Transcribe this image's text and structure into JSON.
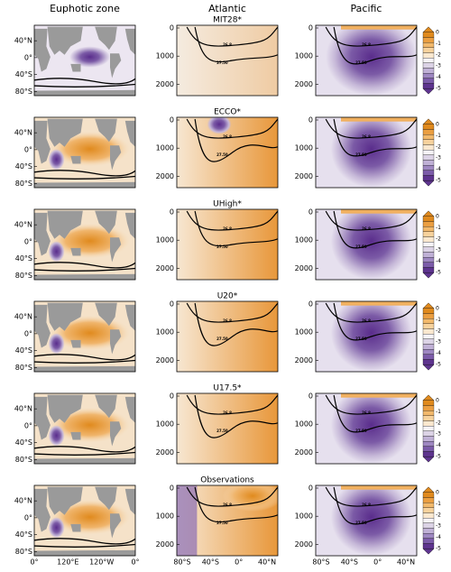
{
  "figure": {
    "columns": [
      "Euphotic zone",
      "Atlantic",
      "Pacific"
    ],
    "rows": [
      "MIT28*",
      "ECCO*",
      "UHigh*",
      "U20*",
      "U17.5*",
      "Observations"
    ],
    "map_yticks": [
      "40°N",
      "0°",
      "40°S",
      "80°S"
    ],
    "map_xticks": [
      "0°",
      "120°E",
      "120°W",
      "0°"
    ],
    "section_yticks": [
      0,
      1000,
      2000
    ],
    "section_xticks": [
      "80°S",
      "40°S",
      "0°",
      "40°N"
    ],
    "colorbar_ticks": [
      0,
      -1,
      -2,
      -3,
      -4,
      -5
    ],
    "contour_labels": [
      "26.8",
      "27.50"
    ]
  }
}
